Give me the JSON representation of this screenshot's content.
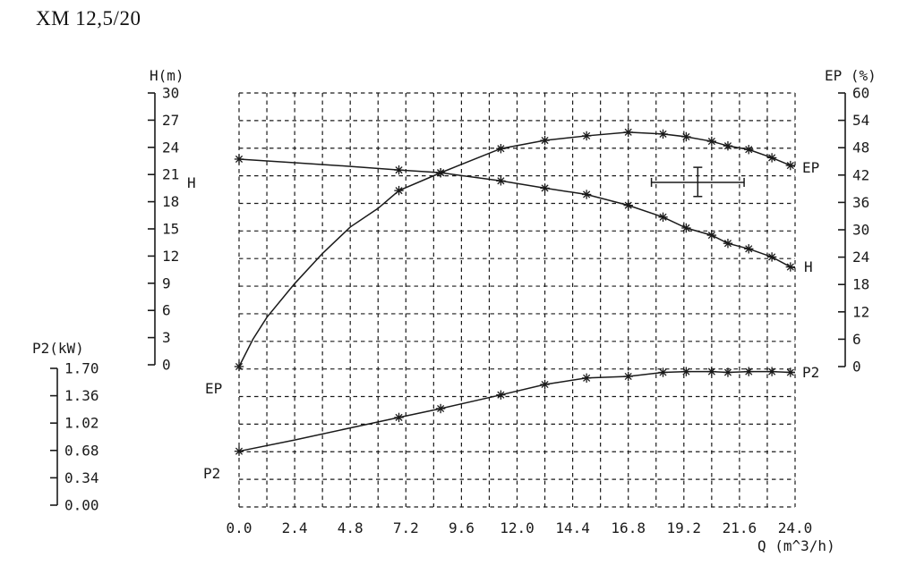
{
  "page": {
    "title": "XM 12,5/20"
  },
  "chart_data": {
    "type": "line",
    "title": "XM 12,5/20",
    "background": "#ffffff",
    "ink_color": "#1a1a1a",
    "grid": {
      "style": "dashed",
      "cols": 20,
      "rows": 15,
      "on": true
    },
    "x_axis": {
      "label": "Q (m^3/h)",
      "min": 0,
      "max": 24,
      "tick_step": 2.4,
      "tick_labels": [
        "0.0",
        "2.4",
        "4.8",
        "7.2",
        "9.6",
        "12.0",
        "14.4",
        "16.8",
        "19.2",
        "21.6",
        "24.0"
      ]
    },
    "h_axis": {
      "label": "H(m)",
      "min": 0,
      "max": 30,
      "tick_step": 3,
      "tick_labels": [
        "0",
        "3",
        "6",
        "9",
        "12",
        "15",
        "18",
        "21",
        "24",
        "27",
        "30"
      ]
    },
    "ep_axis": {
      "label": "EP (%)",
      "min": 0,
      "max": 60,
      "tick_step": 6,
      "tick_labels": [
        "0",
        "6",
        "12",
        "18",
        "24",
        "30",
        "36",
        "42",
        "48",
        "54",
        "60"
      ]
    },
    "p2_axis": {
      "label": "P2(kW)",
      "min": 0,
      "max": 1.7,
      "tick_step": 0.34,
      "tick_labels": [
        "0.00",
        "0.34",
        "0.68",
        "1.02",
        "1.36",
        "1.70"
      ]
    },
    "series": [
      {
        "name": "H",
        "unit": "m",
        "axis": "h",
        "marker": "asterisk",
        "points": [
          [
            0,
            22.7
          ],
          [
            2.4,
            22.3
          ],
          [
            4.8,
            21.9
          ],
          [
            6.9,
            21.5
          ],
          [
            8.7,
            21.2
          ],
          [
            11.3,
            20.3
          ],
          [
            13.2,
            19.5
          ],
          [
            15,
            18.8
          ],
          [
            16.8,
            17.6
          ],
          [
            18.3,
            16.3
          ],
          [
            19.3,
            15.1
          ],
          [
            20.4,
            14.3
          ],
          [
            21.1,
            13.4
          ],
          [
            22,
            12.8
          ],
          [
            23,
            11.9
          ],
          [
            23.8,
            10.8
          ],
          [
            24,
            10.7
          ]
        ],
        "marker_q": [
          0,
          6.9,
          8.7,
          11.3,
          13.2,
          15,
          16.8,
          18.3,
          19.3,
          20.4,
          21.1,
          22,
          23,
          23.8
        ]
      },
      {
        "name": "EP",
        "unit": "%",
        "axis": "ep",
        "marker": "asterisk",
        "points": [
          [
            0,
            0
          ],
          [
            0.6,
            6
          ],
          [
            1.2,
            10.8
          ],
          [
            2.4,
            18.2
          ],
          [
            3.6,
            24.8
          ],
          [
            4.8,
            30.6
          ],
          [
            6,
            34.7
          ],
          [
            6.9,
            38.6
          ],
          [
            8.7,
            42.5
          ],
          [
            11.3,
            47.8
          ],
          [
            13.2,
            49.6
          ],
          [
            15,
            50.6
          ],
          [
            16.8,
            51.4
          ],
          [
            18.3,
            51
          ],
          [
            19.3,
            50.4
          ],
          [
            20.4,
            49.4
          ],
          [
            21.1,
            48.4
          ],
          [
            22,
            47.6
          ],
          [
            23,
            45.8
          ],
          [
            23.8,
            44.1
          ],
          [
            24,
            43.9
          ]
        ],
        "marker_q": [
          0,
          6.9,
          8.7,
          11.3,
          13.2,
          15,
          16.8,
          18.3,
          19.3,
          20.4,
          21.1,
          22,
          23,
          23.8
        ]
      },
      {
        "name": "P2",
        "unit": "kW",
        "axis": "p2",
        "marker": "asterisk",
        "points": [
          [
            0,
            0.67
          ],
          [
            2.4,
            0.81
          ],
          [
            4.8,
            0.96
          ],
          [
            6.9,
            1.09
          ],
          [
            8.7,
            1.2
          ],
          [
            11.3,
            1.37
          ],
          [
            13.2,
            1.5
          ],
          [
            15,
            1.58
          ],
          [
            16.8,
            1.6
          ],
          [
            18.3,
            1.65
          ],
          [
            19.3,
            1.66
          ],
          [
            20.4,
            1.66
          ],
          [
            21.1,
            1.65
          ],
          [
            22,
            1.66
          ],
          [
            23,
            1.66
          ],
          [
            23.8,
            1.65
          ],
          [
            24,
            1.65
          ]
        ],
        "marker_q": [
          0,
          6.9,
          8.7,
          11.3,
          13.2,
          15,
          16.8,
          18.3,
          19.3,
          20.4,
          21.1,
          22,
          23,
          23.8
        ]
      }
    ],
    "curve_labels": {
      "left": {
        "h": "H",
        "ep": "EP",
        "p2": "P2"
      },
      "right": {
        "ep": "EP",
        "h": "H",
        "p2": "P2"
      }
    },
    "tolerance_cross": {
      "q_center": 19.8,
      "q_min": 17.8,
      "q_max": 21.8,
      "ep_center": 40.4,
      "ep_min": 37.3,
      "ep_max": 43.7
    }
  }
}
